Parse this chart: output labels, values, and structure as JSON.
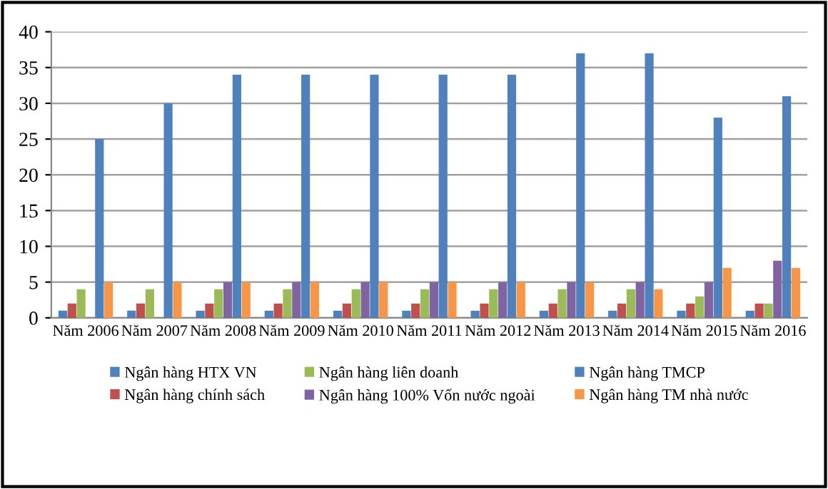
{
  "chart_data": {
    "type": "bar",
    "categories": [
      "Năm 2006",
      "Năm 2007",
      "Năm 2008",
      "Năm 2009",
      "Năm 2010",
      "Năm 2011",
      "Năm 2012",
      "Năm 2013",
      "Năm 2014",
      "Năm 2015",
      "Năm 2016"
    ],
    "series": [
      {
        "name": "Ngân hàng HTX VN",
        "color": "#4f81bd",
        "values": [
          1,
          1,
          1,
          1,
          1,
          1,
          1,
          1,
          1,
          1,
          1
        ]
      },
      {
        "name": "Ngân hàng chính sách",
        "color": "#c0504d",
        "values": [
          2,
          2,
          2,
          2,
          2,
          2,
          2,
          2,
          2,
          2,
          2
        ]
      },
      {
        "name": "Ngân hàng liên doanh",
        "color": "#9bbb59",
        "values": [
          4,
          4,
          4,
          4,
          4,
          4,
          4,
          4,
          4,
          3,
          2
        ]
      },
      {
        "name": "Ngân hàng 100% Vốn nước ngoài",
        "color": "#8064a2",
        "values": [
          0,
          0,
          5,
          5,
          5,
          5,
          5,
          5,
          5,
          5,
          8
        ]
      },
      {
        "name": "Ngân hàng TMCP",
        "color": "#4f81bd",
        "values": [
          25,
          30,
          34,
          34,
          34,
          34,
          34,
          37,
          37,
          28,
          31
        ]
      },
      {
        "name": "Ngân hàng TM nhà nước",
        "color": "#f79646",
        "values": [
          5,
          5,
          5,
          5,
          5,
          5,
          5,
          5,
          4,
          7,
          7
        ]
      }
    ],
    "ylim": [
      0,
      40
    ],
    "yticks": [
      0,
      5,
      10,
      15,
      20,
      25,
      30,
      35,
      40
    ],
    "grid": "y",
    "legend": "bottom"
  }
}
